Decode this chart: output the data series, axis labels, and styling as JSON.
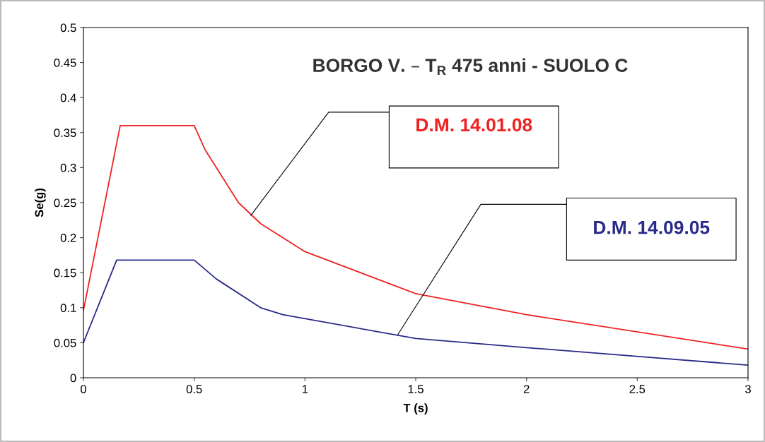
{
  "chart_data": {
    "type": "line",
    "title": "BORGO V. – T$_{R}$ 475 anni - SUOLO C",
    "xlabel": "T (s)",
    "ylabel": "Se(g)",
    "series": [
      {
        "name": "D.M. 14.01.08",
        "color": "#ee2222",
        "x": [
          0,
          0.166,
          0.5,
          0.55,
          0.7,
          0.8,
          1.0,
          1.5,
          2.0,
          3.0
        ],
        "values": [
          0.096,
          0.36,
          0.36,
          0.325,
          0.25,
          0.22,
          0.18,
          0.12,
          0.09,
          0.041
        ]
      },
      {
        "name": "D.M. 14.09.05",
        "color": "#2a2a88",
        "x": [
          0,
          0.15,
          0.5,
          0.6,
          0.8,
          0.9,
          1.5,
          2.0,
          3.0
        ],
        "values": [
          0.05,
          0.168,
          0.168,
          0.141,
          0.1,
          0.09,
          0.056,
          0.043,
          0.018
        ]
      }
    ],
    "xlim": [
      0,
      3
    ],
    "ylim": [
      0,
      0.5
    ],
    "xticks": [
      0,
      0.5,
      1,
      1.5,
      2,
      2.5,
      3
    ],
    "yticks": [
      0,
      0.05,
      0.1,
      0.15,
      0.2,
      0.25,
      0.3,
      0.35,
      0.4,
      0.45,
      0.5
    ],
    "grid": false,
    "legend": false
  }
}
